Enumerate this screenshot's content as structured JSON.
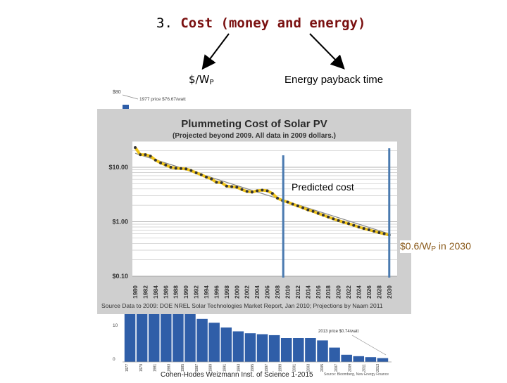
{
  "slide": {
    "heading_num": "3.",
    "heading_text": "Cost (money and energy)",
    "label_wp": "$/W",
    "label_wp_sub": "P",
    "label_epb": "Energy payback time",
    "predicted": "Predicted cost",
    "note_price": "$0.6/W",
    "note_sub": "P",
    "note_rest": " in 2030",
    "footer": "Cohen-Hodes Weizmann Inst. of Science 1-2015"
  },
  "background_chart": {
    "note_top": "1977 price $76.67/watt",
    "note_2013": "2013 price $0.74/watt",
    "source": "Source: Bloomberg, New Energy Finance",
    "ytick_top": "$80",
    "yticks_mid": [
      "10",
      "0"
    ],
    "years": [
      "1977",
      "1979",
      "1981",
      "1983",
      "1985",
      "1987",
      "1989",
      "1991",
      "1993",
      "1995",
      "1997",
      "1999",
      "2001",
      "2003",
      "2005",
      "2007",
      "2009",
      "2011",
      "2013"
    ],
    "bar_heights_rel": [
      1.0,
      1.0,
      1.0,
      1.0,
      1.0,
      1.0,
      0.9,
      0.82,
      0.72,
      0.64,
      0.6,
      0.58,
      0.56,
      0.5,
      0.5,
      0.5,
      0.45,
      0.3,
      0.15,
      0.12,
      0.1,
      0.08
    ]
  },
  "chart_data": {
    "type": "line",
    "title": "Plummeting Cost of Solar PV",
    "subtitle": "(Projected beyond 2009.  All data in 2009 dollars.)",
    "y_tick_labels": [
      "$10.00",
      "$1.00",
      "$0.10"
    ],
    "ylim": [
      0.1,
      30
    ],
    "log_y": true,
    "xlim": [
      1980,
      2031
    ],
    "x_tick_labels": [
      "1980",
      "1982",
      "1984",
      "1986",
      "1988",
      "1990",
      "1992",
      "1994",
      "1996",
      "1998",
      "2000",
      "2002",
      "2004",
      "2006",
      "2008",
      "2010",
      "2012",
      "2014",
      "2016",
      "2018",
      "2020",
      "2022",
      "2024",
      "2026",
      "2028",
      "2030"
    ],
    "source": "Source Data to 2009:  DOE NREL Solar Technologies  Market Report, Jan 2010;  Projections by Naam 2011",
    "series": [
      {
        "x": [
          1980,
          1981,
          1982,
          1983,
          1984,
          1985,
          1986,
          1987,
          1988,
          1989,
          1990,
          1991,
          1992,
          1993,
          1994,
          1995,
          1996,
          1997,
          1998,
          1999,
          2000,
          2001,
          2002,
          2003,
          2004,
          2005,
          2006,
          2007,
          2008,
          2009,
          2010,
          2011,
          2012,
          2013,
          2014,
          2015,
          2016,
          2017,
          2018,
          2019,
          2020,
          2021,
          2022,
          2023,
          2024,
          2025,
          2026,
          2027,
          2028,
          2029,
          2030
        ],
        "y": [
          23,
          17,
          17,
          16,
          13.5,
          12,
          11,
          10,
          9.6,
          9.5,
          9.3,
          8.7,
          7.9,
          7.3,
          6.6,
          6.1,
          5.3,
          5.2,
          4.5,
          4.4,
          4.3,
          3.9,
          3.6,
          3.5,
          3.7,
          3.8,
          3.7,
          3.3,
          2.7,
          2.45,
          2.3,
          2.1,
          1.95,
          1.8,
          1.65,
          1.55,
          1.42,
          1.32,
          1.22,
          1.13,
          1.05,
          0.98,
          0.92,
          0.86,
          0.8,
          0.75,
          0.71,
          0.67,
          0.63,
          0.6,
          0.57
        ]
      }
    ],
    "trend": {
      "x": [
        1980,
        2030
      ],
      "y": [
        18,
        0.6
      ]
    },
    "markers": [
      2009,
      2030
    ],
    "colors": {
      "line": "#f0c419",
      "point": "#333333",
      "trend": "#888888",
      "marker": "#4a7ab0",
      "title": "#2a2a2a",
      "bg": "#cfcfcf"
    }
  }
}
